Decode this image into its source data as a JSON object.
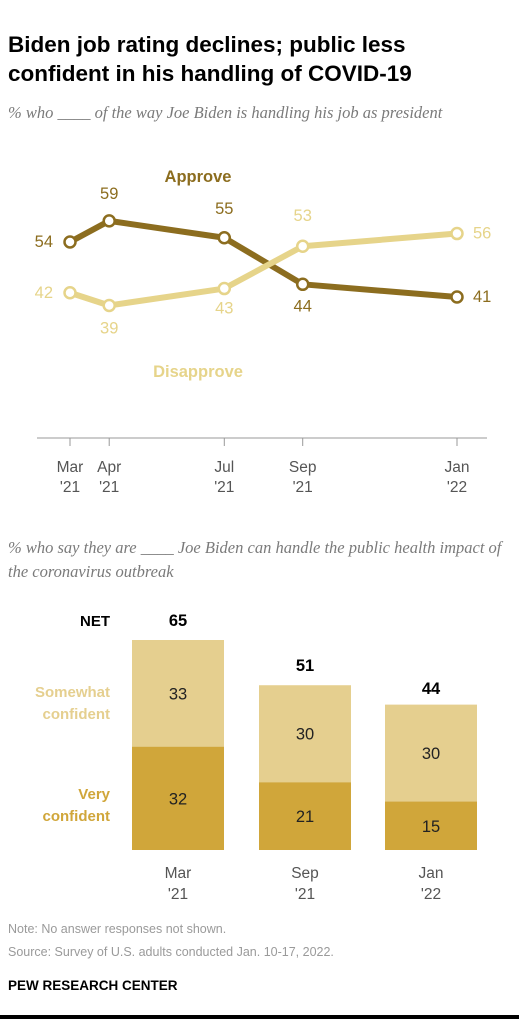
{
  "header": {
    "title": "Biden job rating declines; public less confident in his handling of COVID-19"
  },
  "colors": {
    "approve": "#8c6d1f",
    "disapprove": "#e6d48a",
    "very_confident": "#d0a63a",
    "somewhat_confident": "#e5cf8f",
    "axis": "#999999"
  },
  "chart_data": [
    {
      "type": "line",
      "subtitle": "% who ____ of the way Joe Biden is handling his job as president",
      "x": [
        "2021-03",
        "2021-04",
        "2021-07",
        "2021-09",
        "2022-01"
      ],
      "tick_labels": [
        [
          "Mar",
          "'21"
        ],
        [
          "Apr",
          "'21"
        ],
        [
          "Jul",
          "'21"
        ],
        [
          "Sep",
          "'21"
        ],
        [
          "Jan",
          "'22"
        ]
      ],
      "series": [
        {
          "name": "Approve",
          "values": [
            54,
            59,
            55,
            44,
            41
          ]
        },
        {
          "name": "Disapprove",
          "values": [
            42,
            39,
            43,
            53,
            56
          ]
        }
      ],
      "ylim": [
        30,
        70
      ],
      "grid": false
    },
    {
      "type": "bar",
      "stacked": true,
      "subtitle": "% who say they are ____ Joe Biden can handle the public health impact of the coronavirus outbreak",
      "categories": [
        [
          "Mar",
          "'21"
        ],
        [
          "Sep",
          "'21"
        ],
        [
          "Jan",
          "'22"
        ]
      ],
      "net_label": "NET",
      "net": [
        65,
        51,
        44
      ],
      "series": [
        {
          "name": "Very confident",
          "values": [
            32,
            21,
            15
          ]
        },
        {
          "name": "Somewhat confident",
          "values": [
            33,
            30,
            30
          ]
        }
      ],
      "legend": [
        [
          "Somewhat",
          "confident"
        ],
        [
          "Very",
          "confident"
        ]
      ]
    }
  ],
  "footer": {
    "note": "Note: No answer responses not shown.",
    "source": "Source: Survey of U.S. adults conducted Jan. 10-17, 2022.",
    "brand": "PEW RESEARCH CENTER"
  }
}
